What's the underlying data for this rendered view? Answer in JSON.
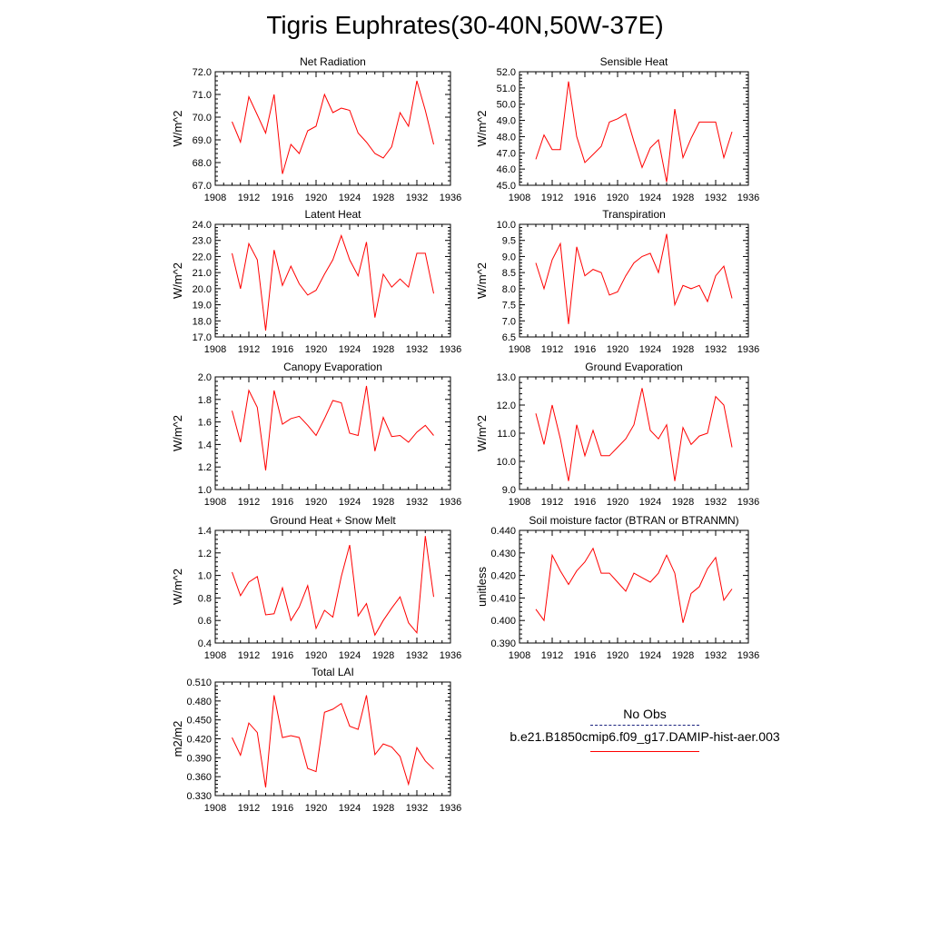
{
  "title": "Tigris Euphrates(30-40N,50W-37E)",
  "colors": {
    "model": "#ff0000",
    "obs": "#1a237e"
  },
  "legend": {
    "obs_label": "No Obs",
    "model_label": "b.e21.B1850cmip6.f09_g17.DAMIP-hist-aer.003"
  },
  "chart_data": [
    {
      "type": "line",
      "title": "Net Radiation",
      "ylabel": "W/m^2",
      "xlabel": "",
      "xlim": [
        1908,
        1936
      ],
      "ylim": [
        67.0,
        72.0
      ],
      "xticks": [
        1908,
        1912,
        1916,
        1920,
        1924,
        1928,
        1932,
        1936
      ],
      "yticks": [
        "67.0",
        "68.0",
        "69.0",
        "70.0",
        "71.0",
        "72.0"
      ],
      "x": [
        1910,
        1911,
        1912,
        1913,
        1914,
        1915,
        1916,
        1917,
        1918,
        1919,
        1920,
        1921,
        1922,
        1923,
        1924,
        1925,
        1926,
        1927,
        1928,
        1929,
        1930,
        1931,
        1932,
        1933,
        1934
      ],
      "series": [
        {
          "values": [
            69.8,
            68.9,
            70.9,
            70.1,
            69.3,
            71.0,
            67.5,
            68.8,
            68.4,
            69.4,
            69.6,
            71.0,
            70.2,
            70.4,
            70.3,
            69.3,
            68.9,
            68.4,
            68.2,
            68.7,
            70.2,
            69.6,
            71.6,
            70.3,
            68.8
          ]
        }
      ]
    },
    {
      "type": "line",
      "title": "Sensible Heat",
      "ylabel": "W/m^2",
      "xlabel": "",
      "xlim": [
        1908,
        1936
      ],
      "ylim": [
        45.0,
        52.0
      ],
      "xticks": [
        1908,
        1912,
        1916,
        1920,
        1924,
        1928,
        1932,
        1936
      ],
      "yticks": [
        "45.0",
        "46.0",
        "47.0",
        "48.0",
        "49.0",
        "50.0",
        "51.0",
        "52.0"
      ],
      "x": [
        1910,
        1911,
        1912,
        1913,
        1914,
        1915,
        1916,
        1917,
        1918,
        1919,
        1920,
        1921,
        1922,
        1923,
        1924,
        1925,
        1926,
        1927,
        1928,
        1929,
        1930,
        1931,
        1932,
        1933,
        1934
      ],
      "series": [
        {
          "values": [
            46.6,
            48.1,
            47.2,
            47.2,
            51.4,
            48.0,
            46.4,
            46.9,
            47.4,
            48.9,
            49.1,
            49.4,
            47.7,
            46.1,
            47.3,
            47.8,
            45.2,
            49.7,
            46.7,
            47.9,
            48.9,
            48.9,
            48.9,
            46.7,
            48.3
          ]
        }
      ]
    },
    {
      "type": "line",
      "title": "Latent Heat",
      "ylabel": "W/m^2",
      "xlabel": "",
      "xlim": [
        1908,
        1936
      ],
      "ylim": [
        17.0,
        24.0
      ],
      "xticks": [
        1908,
        1912,
        1916,
        1920,
        1924,
        1928,
        1932,
        1936
      ],
      "yticks": [
        "17.0",
        "18.0",
        "19.0",
        "20.0",
        "21.0",
        "22.0",
        "23.0",
        "24.0"
      ],
      "x": [
        1910,
        1911,
        1912,
        1913,
        1914,
        1915,
        1916,
        1917,
        1918,
        1919,
        1920,
        1921,
        1922,
        1923,
        1924,
        1925,
        1926,
        1927,
        1928,
        1929,
        1930,
        1931,
        1932,
        1933,
        1934
      ],
      "series": [
        {
          "values": [
            22.2,
            20.0,
            22.8,
            21.8,
            17.4,
            22.4,
            20.2,
            21.4,
            20.3,
            19.6,
            19.9,
            20.9,
            21.8,
            23.3,
            21.8,
            20.8,
            22.9,
            18.2,
            20.9,
            20.1,
            20.6,
            20.1,
            22.2,
            22.2,
            19.7
          ]
        }
      ]
    },
    {
      "type": "line",
      "title": "Transpiration",
      "ylabel": "W/m^2",
      "xlabel": "",
      "xlim": [
        1908,
        1936
      ],
      "ylim": [
        6.5,
        10.0
      ],
      "xticks": [
        1908,
        1912,
        1916,
        1920,
        1924,
        1928,
        1932,
        1936
      ],
      "yticks": [
        "6.5",
        "7.0",
        "7.5",
        "8.0",
        "8.5",
        "9.0",
        "9.5",
        "10.0"
      ],
      "x": [
        1910,
        1911,
        1912,
        1913,
        1914,
        1915,
        1916,
        1917,
        1918,
        1919,
        1920,
        1921,
        1922,
        1923,
        1924,
        1925,
        1926,
        1927,
        1928,
        1929,
        1930,
        1931,
        1932,
        1933,
        1934
      ],
      "series": [
        {
          "values": [
            8.8,
            8.0,
            8.9,
            9.4,
            6.9,
            9.3,
            8.4,
            8.6,
            8.5,
            7.8,
            7.9,
            8.4,
            8.8,
            9.0,
            9.1,
            8.5,
            9.7,
            7.5,
            8.1,
            8.0,
            8.1,
            7.6,
            8.4,
            8.7,
            7.7
          ]
        }
      ]
    },
    {
      "type": "line",
      "title": "Canopy Evaporation",
      "ylabel": "W/m^2",
      "xlabel": "",
      "xlim": [
        1908,
        1936
      ],
      "ylim": [
        1.0,
        2.0
      ],
      "xticks": [
        1908,
        1912,
        1916,
        1920,
        1924,
        1928,
        1932,
        1936
      ],
      "yticks": [
        "1.0",
        "1.2",
        "1.4",
        "1.6",
        "1.8",
        "2.0"
      ],
      "x": [
        1910,
        1911,
        1912,
        1913,
        1914,
        1915,
        1916,
        1917,
        1918,
        1919,
        1920,
        1921,
        1922,
        1923,
        1924,
        1925,
        1926,
        1927,
        1928,
        1929,
        1930,
        1931,
        1932,
        1933,
        1934
      ],
      "series": [
        {
          "values": [
            1.7,
            1.42,
            1.88,
            1.73,
            1.17,
            1.88,
            1.58,
            1.63,
            1.65,
            1.57,
            1.48,
            1.63,
            1.79,
            1.77,
            1.5,
            1.48,
            1.92,
            1.34,
            1.64,
            1.47,
            1.48,
            1.42,
            1.51,
            1.57,
            1.48
          ]
        }
      ]
    },
    {
      "type": "line",
      "title": "Ground Evaporation",
      "ylabel": "W/m^2",
      "xlabel": "",
      "xlim": [
        1908,
        1936
      ],
      "ylim": [
        9.0,
        13.0
      ],
      "xticks": [
        1908,
        1912,
        1916,
        1920,
        1924,
        1928,
        1932,
        1936
      ],
      "yticks": [
        "9.0",
        "10.0",
        "11.0",
        "12.0",
        "13.0"
      ],
      "x": [
        1910,
        1911,
        1912,
        1913,
        1914,
        1915,
        1916,
        1917,
        1918,
        1919,
        1920,
        1921,
        1922,
        1923,
        1924,
        1925,
        1926,
        1927,
        1928,
        1929,
        1930,
        1931,
        1932,
        1933,
        1934
      ],
      "series": [
        {
          "values": [
            11.7,
            10.6,
            12.0,
            10.8,
            9.3,
            11.3,
            10.2,
            11.1,
            10.2,
            10.2,
            10.5,
            10.8,
            11.3,
            12.6,
            11.1,
            10.8,
            11.3,
            9.3,
            11.2,
            10.6,
            10.9,
            11.0,
            12.3,
            12.0,
            10.5
          ]
        }
      ]
    },
    {
      "type": "line",
      "title": "Ground Heat + Snow Melt",
      "ylabel": "W/m^2",
      "xlabel": "",
      "xlim": [
        1908,
        1936
      ],
      "ylim": [
        0.4,
        1.4
      ],
      "xticks": [
        1908,
        1912,
        1916,
        1920,
        1924,
        1928,
        1932,
        1936
      ],
      "yticks": [
        "0.4",
        "0.6",
        "0.8",
        "1.0",
        "1.2",
        "1.4"
      ],
      "x": [
        1910,
        1911,
        1912,
        1913,
        1914,
        1915,
        1916,
        1917,
        1918,
        1919,
        1920,
        1921,
        1922,
        1923,
        1924,
        1925,
        1926,
        1927,
        1928,
        1929,
        1930,
        1931,
        1932,
        1933,
        1934
      ],
      "series": [
        {
          "values": [
            1.03,
            0.82,
            0.94,
            0.99,
            0.65,
            0.66,
            0.89,
            0.6,
            0.72,
            0.91,
            0.53,
            0.69,
            0.63,
            0.99,
            1.27,
            0.64,
            0.75,
            0.47,
            0.6,
            0.71,
            0.81,
            0.58,
            0.49,
            1.35,
            0.81
          ]
        }
      ]
    },
    {
      "type": "line",
      "title": "Soil moisture factor (BTRAN or BTRANMN)",
      "ylabel": "unitless",
      "xlabel": "",
      "xlim": [
        1908,
        1936
      ],
      "ylim": [
        0.39,
        0.44
      ],
      "xticks": [
        1908,
        1912,
        1916,
        1920,
        1924,
        1928,
        1932,
        1936
      ],
      "yticks": [
        "0.390",
        "0.400",
        "0.410",
        "0.420",
        "0.430",
        "0.440"
      ],
      "x": [
        1910,
        1911,
        1912,
        1913,
        1914,
        1915,
        1916,
        1917,
        1918,
        1919,
        1920,
        1921,
        1922,
        1923,
        1924,
        1925,
        1926,
        1927,
        1928,
        1929,
        1930,
        1931,
        1932,
        1933,
        1934
      ],
      "series": [
        {
          "values": [
            0.405,
            0.4,
            0.429,
            0.422,
            0.416,
            0.422,
            0.426,
            0.432,
            0.421,
            0.421,
            0.417,
            0.413,
            0.421,
            0.419,
            0.417,
            0.421,
            0.429,
            0.421,
            0.399,
            0.412,
            0.415,
            0.423,
            0.428,
            0.409,
            0.414
          ]
        }
      ]
    },
    {
      "type": "line",
      "title": "Total LAI",
      "ylabel": "m2/m2",
      "xlabel": "",
      "xlim": [
        1908,
        1936
      ],
      "ylim": [
        0.33,
        0.51
      ],
      "xticks": [
        1908,
        1912,
        1916,
        1920,
        1924,
        1928,
        1932,
        1936
      ],
      "yticks": [
        "0.330",
        "0.360",
        "0.390",
        "0.420",
        "0.450",
        "0.480",
        "0.510"
      ],
      "x": [
        1910,
        1911,
        1912,
        1913,
        1914,
        1915,
        1916,
        1917,
        1918,
        1919,
        1920,
        1921,
        1922,
        1923,
        1924,
        1925,
        1926,
        1927,
        1928,
        1929,
        1930,
        1931,
        1932,
        1933,
        1934
      ],
      "series": [
        {
          "values": [
            0.422,
            0.394,
            0.445,
            0.43,
            0.343,
            0.489,
            0.422,
            0.425,
            0.422,
            0.373,
            0.368,
            0.462,
            0.467,
            0.476,
            0.44,
            0.435,
            0.489,
            0.395,
            0.412,
            0.407,
            0.392,
            0.348,
            0.406,
            0.385,
            0.372
          ]
        }
      ]
    }
  ]
}
